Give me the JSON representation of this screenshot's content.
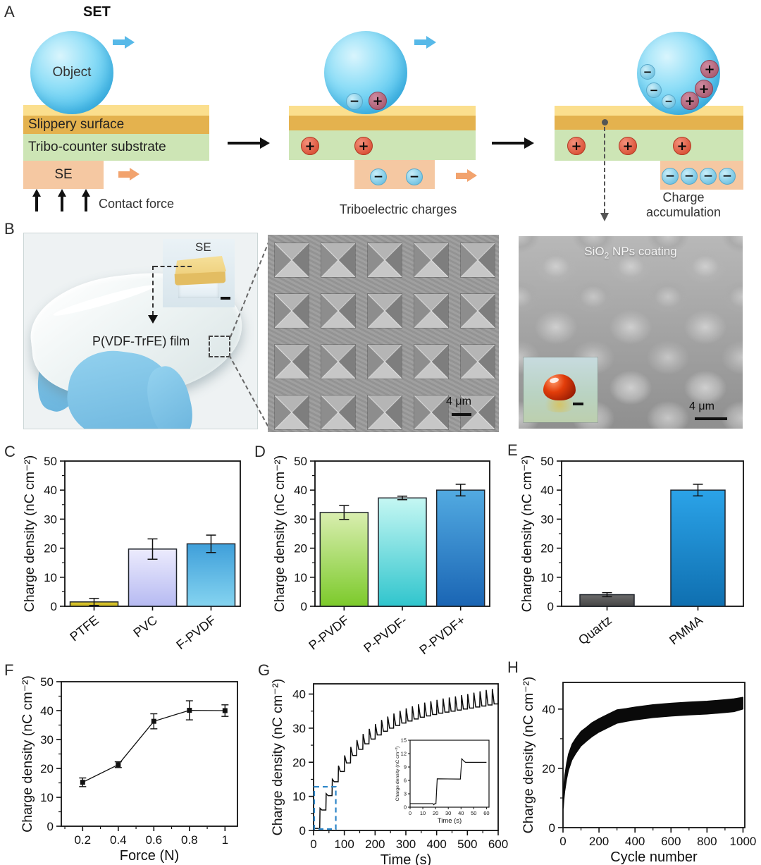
{
  "symbols": {
    "plus": "+",
    "minus": "−"
  },
  "panelA": {
    "letter": "A",
    "title": "SET",
    "object_label": "Object",
    "slippery_label": "Slippery surface",
    "substrate_label": "Tribo-counter substrate",
    "se_label": "SE",
    "contact_force_label": "Contact force",
    "stage2_caption": "Triboelectric charges",
    "stage3_caption_line1": "Charge",
    "stage3_caption_line2": "accumulation"
  },
  "panelB": {
    "letter": "B",
    "inset_se_label": "SE",
    "film_label": "P(VDF-TrFE) film",
    "sem_pyramids_scale": "4 μm",
    "sem_coating_title_base": "SiO",
    "sem_coating_title_sub": "2",
    "sem_coating_title_rest": " NPs coating",
    "sem_coating_scale": "4 μm"
  },
  "chart_data": [
    {
      "id": "C",
      "panel_letter": "C",
      "type": "bar",
      "categories": [
        "PTFE",
        "PVC",
        "F-PVDF"
      ],
      "values": [
        1.5,
        19.7,
        21.5
      ],
      "errors": [
        1.2,
        3.5,
        3.0
      ],
      "ylabel": "Charge density (nC cm⁻²)",
      "ylim": [
        0,
        50
      ],
      "yticks": [
        0,
        10,
        20,
        30,
        40,
        50
      ],
      "yminor": [
        5,
        15,
        25,
        35,
        45
      ],
      "bar_colors": [
        [
          "#dcc930",
          "#c9b41f"
        ],
        [
          "#ecebfd",
          "#b6baf2"
        ],
        [
          "#3f9fda",
          "#85d4f0"
        ]
      ]
    },
    {
      "id": "D",
      "panel_letter": "D",
      "type": "bar",
      "categories": [
        "P-PVDF",
        "P-PVDF-",
        "P-PVDF+"
      ],
      "values": [
        32.3,
        37.3,
        40.0
      ],
      "errors": [
        2.4,
        0.6,
        2.0
      ],
      "ylabel": "Charge density (nC cm⁻²)",
      "ylim": [
        0,
        50
      ],
      "yticks": [
        0,
        10,
        20,
        30,
        40,
        50
      ],
      "yminor": [
        5,
        15,
        25,
        35,
        45
      ],
      "bar_colors": [
        [
          "#d9eeb0",
          "#7cca2b"
        ],
        [
          "#c5f7f3",
          "#30c5cd"
        ],
        [
          "#52aae1",
          "#1a65b4"
        ]
      ]
    },
    {
      "id": "E",
      "panel_letter": "E",
      "type": "bar",
      "categories": [
        "Quartz",
        "PMMA"
      ],
      "values": [
        4.0,
        40.0
      ],
      "errors": [
        0.7,
        2.0
      ],
      "ylabel": "Charge density (nC cm⁻²)",
      "ylim": [
        0,
        50
      ],
      "yticks": [
        0,
        10,
        20,
        30,
        40,
        50
      ],
      "yminor": [
        5,
        15,
        25,
        35,
        45
      ],
      "bar_colors": [
        [
          "#6b6b6b",
          "#454545"
        ],
        [
          "#2ba3e8",
          "#0f6fb0"
        ]
      ]
    },
    {
      "id": "F",
      "panel_letter": "F",
      "type": "line",
      "x": [
        0.2,
        0.4,
        0.6,
        0.8,
        1.0
      ],
      "y": [
        15.2,
        21.3,
        36.3,
        40.1,
        40.0
      ],
      "yerr": [
        1.5,
        1.0,
        2.6,
        3.3,
        2.0
      ],
      "xlabel": "Force (N)",
      "ylabel": "Charge density (nC cm⁻²)",
      "xlim": [
        0.08,
        1.07
      ],
      "ylim": [
        0,
        50
      ],
      "xticks": [
        0.2,
        0.4,
        0.6,
        0.8,
        1
      ],
      "xminor": [
        0.1,
        0.3,
        0.5,
        0.7,
        0.9
      ],
      "yticks": [
        0,
        10,
        20,
        30,
        40,
        50
      ],
      "yminor": [
        5,
        15,
        25,
        35,
        45
      ]
    },
    {
      "id": "G",
      "panel_letter": "G",
      "type": "step-curve",
      "xlabel": "Time (s)",
      "ylabel": "Charge density (nC cm⁻²)",
      "xlim": [
        0,
        600
      ],
      "ylim": [
        0,
        43
      ],
      "xticks": [
        0,
        100,
        200,
        300,
        400,
        500,
        600
      ],
      "xminor": [
        50,
        150,
        250,
        350,
        450,
        550
      ],
      "yticks": [
        0,
        10,
        20,
        30,
        40
      ],
      "yminor": [
        5,
        15,
        25,
        35
      ],
      "start": [
        0,
        0.6
      ],
      "step_times": [
        20,
        40,
        60,
        80,
        100,
        120,
        140,
        160,
        180,
        200,
        220,
        240,
        260,
        280,
        300,
        320,
        340,
        360,
        380,
        400,
        420,
        440,
        460,
        480,
        500,
        520,
        540,
        560,
        580,
        600
      ],
      "settle": [
        6.0,
        10.2,
        14.3,
        17.3,
        19.8,
        22.0,
        23.8,
        25.4,
        26.8,
        28.0,
        29.1,
        30.0,
        30.8,
        31.5,
        32.1,
        32.7,
        33.2,
        33.6,
        34.0,
        34.4,
        34.7,
        35.0,
        35.3,
        35.6,
        35.9,
        36.2,
        36.5,
        36.8,
        37.1,
        37.3
      ],
      "peaks": [
        6.5,
        10.8,
        15.0,
        19.0,
        22.0,
        24.5,
        26.5,
        28.3,
        29.8,
        31.2,
        32.4,
        33.4,
        34.3,
        35.1,
        35.8,
        36.4,
        37.0,
        37.5,
        37.9,
        38.3,
        38.7,
        39.0,
        39.3,
        39.7,
        40.0,
        40.4,
        40.8,
        41.2,
        41.5,
        41.8
      ],
      "highlight_box": {
        "x": [
          0,
          70
        ],
        "y": [
          0,
          12.8
        ],
        "color": "#2e86c8"
      },
      "inset": {
        "xlabel": "Time (s)",
        "ylabel": "Charge density (nC cm⁻²)",
        "xlim": [
          0,
          62
        ],
        "ylim": [
          0,
          15
        ],
        "xticks": [
          0,
          10,
          20,
          30,
          40,
          50,
          60
        ],
        "yticks": [
          0,
          3,
          6,
          9,
          12,
          15
        ],
        "points": [
          [
            0,
            0.8
          ],
          [
            18,
            0.8
          ],
          [
            18.6,
            0.55
          ],
          [
            19.4,
            0.8
          ],
          [
            20.3,
            0.8
          ],
          [
            21.3,
            6.35
          ],
          [
            39.5,
            6.3
          ],
          [
            40.6,
            10.85
          ],
          [
            42,
            10.4
          ],
          [
            43.5,
            10.05
          ],
          [
            60,
            10.05
          ]
        ]
      }
    },
    {
      "id": "H",
      "panel_letter": "H",
      "type": "band",
      "xlabel": "Cycle number",
      "ylabel": "Charge density (nC cm⁻²)",
      "xlim": [
        0,
        1010
      ],
      "ylim": [
        0,
        49
      ],
      "xticks": [
        0,
        200,
        400,
        600,
        800,
        1000
      ],
      "xminor": [
        100,
        300,
        500,
        700,
        900
      ],
      "yticks": [
        0,
        20,
        40
      ],
      "yminor": [
        10,
        30
      ],
      "x": [
        2,
        5,
        10,
        20,
        30,
        50,
        70,
        100,
        130,
        160,
        200,
        250,
        300,
        350,
        400,
        500,
        600,
        700,
        800,
        900,
        950,
        1000
      ],
      "center": [
        9,
        12,
        15,
        19,
        22,
        25.5,
        27.5,
        30,
        31.5,
        33,
        34.5,
        36,
        37.5,
        38,
        38.5,
        39.3,
        39.8,
        40.2,
        40.5,
        41,
        41.3,
        42
      ],
      "half": [
        2.5,
        2.8,
        2.8,
        2.8,
        2.8,
        2.7,
        2.6,
        2.5,
        2.4,
        2.4,
        2.3,
        2.3,
        2.3,
        2.2,
        2.2,
        2.2,
        2.2,
        2.2,
        2.2,
        2.2,
        2.2,
        2.0
      ]
    }
  ]
}
